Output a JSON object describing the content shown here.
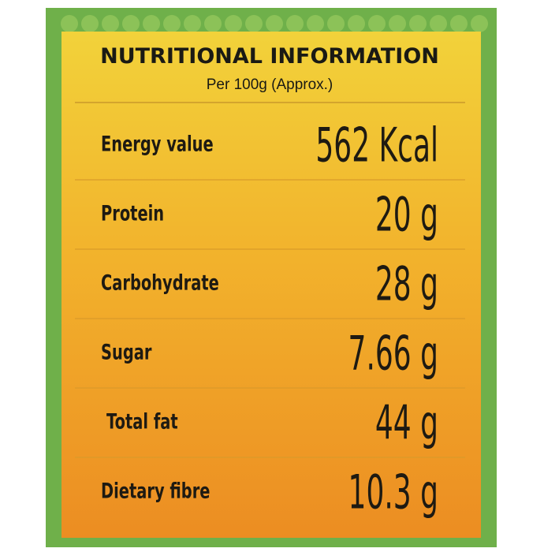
{
  "header": {
    "title": "NUTRITIONAL INFORMATION",
    "subtitle": "Per 100g (Approx.)"
  },
  "table": {
    "rows": [
      [
        "Energy value",
        "562 Kcal"
      ],
      [
        "Protein",
        "20 g"
      ],
      [
        "Carbohydrate",
        "28 g"
      ],
      [
        "Sugar",
        "7.66 g"
      ],
      [
        "Total fat",
        "44 g"
      ],
      [
        "Dietary fibre",
        "10.3 g"
      ]
    ]
  }
}
